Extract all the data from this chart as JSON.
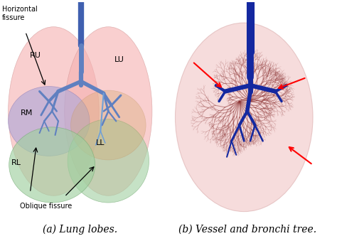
{
  "figsize": [
    4.74,
    3.32
  ],
  "dpi": 100,
  "background_color": "#ffffff",
  "caption_a": "(a) Lung lobes.",
  "caption_b": "(b) Vessel and bronchi tree.",
  "label_horizontal_fissure": "Horizontal\nfissure",
  "label_oblique_fissure": "Oblique fissure",
  "label_RU": "RU",
  "label_LU": "LU",
  "label_RM": "RM",
  "label_RL": "RL",
  "label_LL": "LL",
  "caption_fontsize": 10,
  "label_fontsize": 8,
  "annotation_fontsize": 7,
  "color_ru": "#f5b0b0",
  "color_lu": "#f5b0b0",
  "color_rm": "#b0a8d8",
  "color_rl": "#a0d0a0",
  "color_ll": "#a0d0a0",
  "color_lu_lower": "#d4a870",
  "color_bronchi": "#6080c0",
  "color_bronchi_dark": "#4060b0",
  "color_vessel_bg": "#f0c0c0",
  "color_vessel_lines": "#8b3030",
  "color_bronchi_b": "#1428a0"
}
